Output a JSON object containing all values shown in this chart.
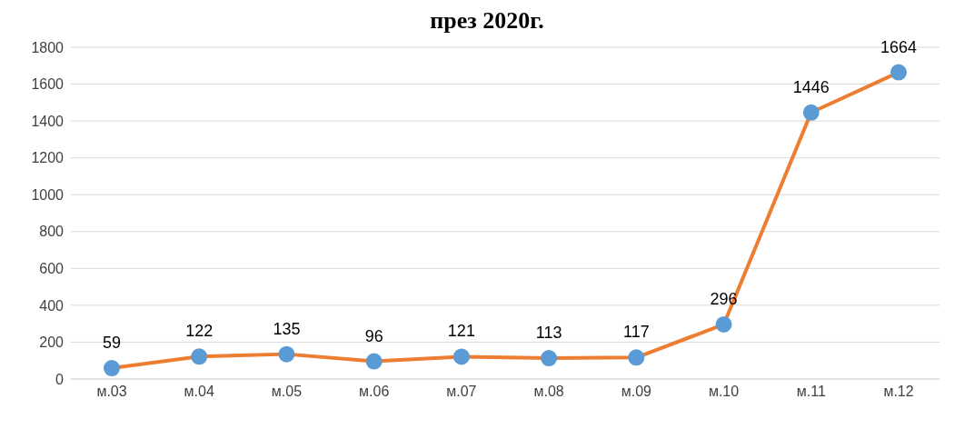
{
  "chart_data": {
    "type": "line",
    "title": "през 2020г.",
    "categories": [
      "м.03",
      "м.04",
      "м.05",
      "м.06",
      "м.07",
      "м.08",
      "м.09",
      "м.10",
      "м.11",
      "м.12"
    ],
    "series": [
      {
        "color": "#ed7d31",
        "values": [
          59,
          122,
          135,
          96,
          121,
          113,
          117,
          296,
          1446,
          1664
        ]
      }
    ],
    "ylim": [
      0,
      1800
    ],
    "yticks": [
      0,
      200,
      400,
      600,
      800,
      1000,
      1200,
      1400,
      1600,
      1800
    ],
    "grid": "y",
    "data_labels": true,
    "marker": "circle",
    "line_style": "solid",
    "legend": false
  }
}
